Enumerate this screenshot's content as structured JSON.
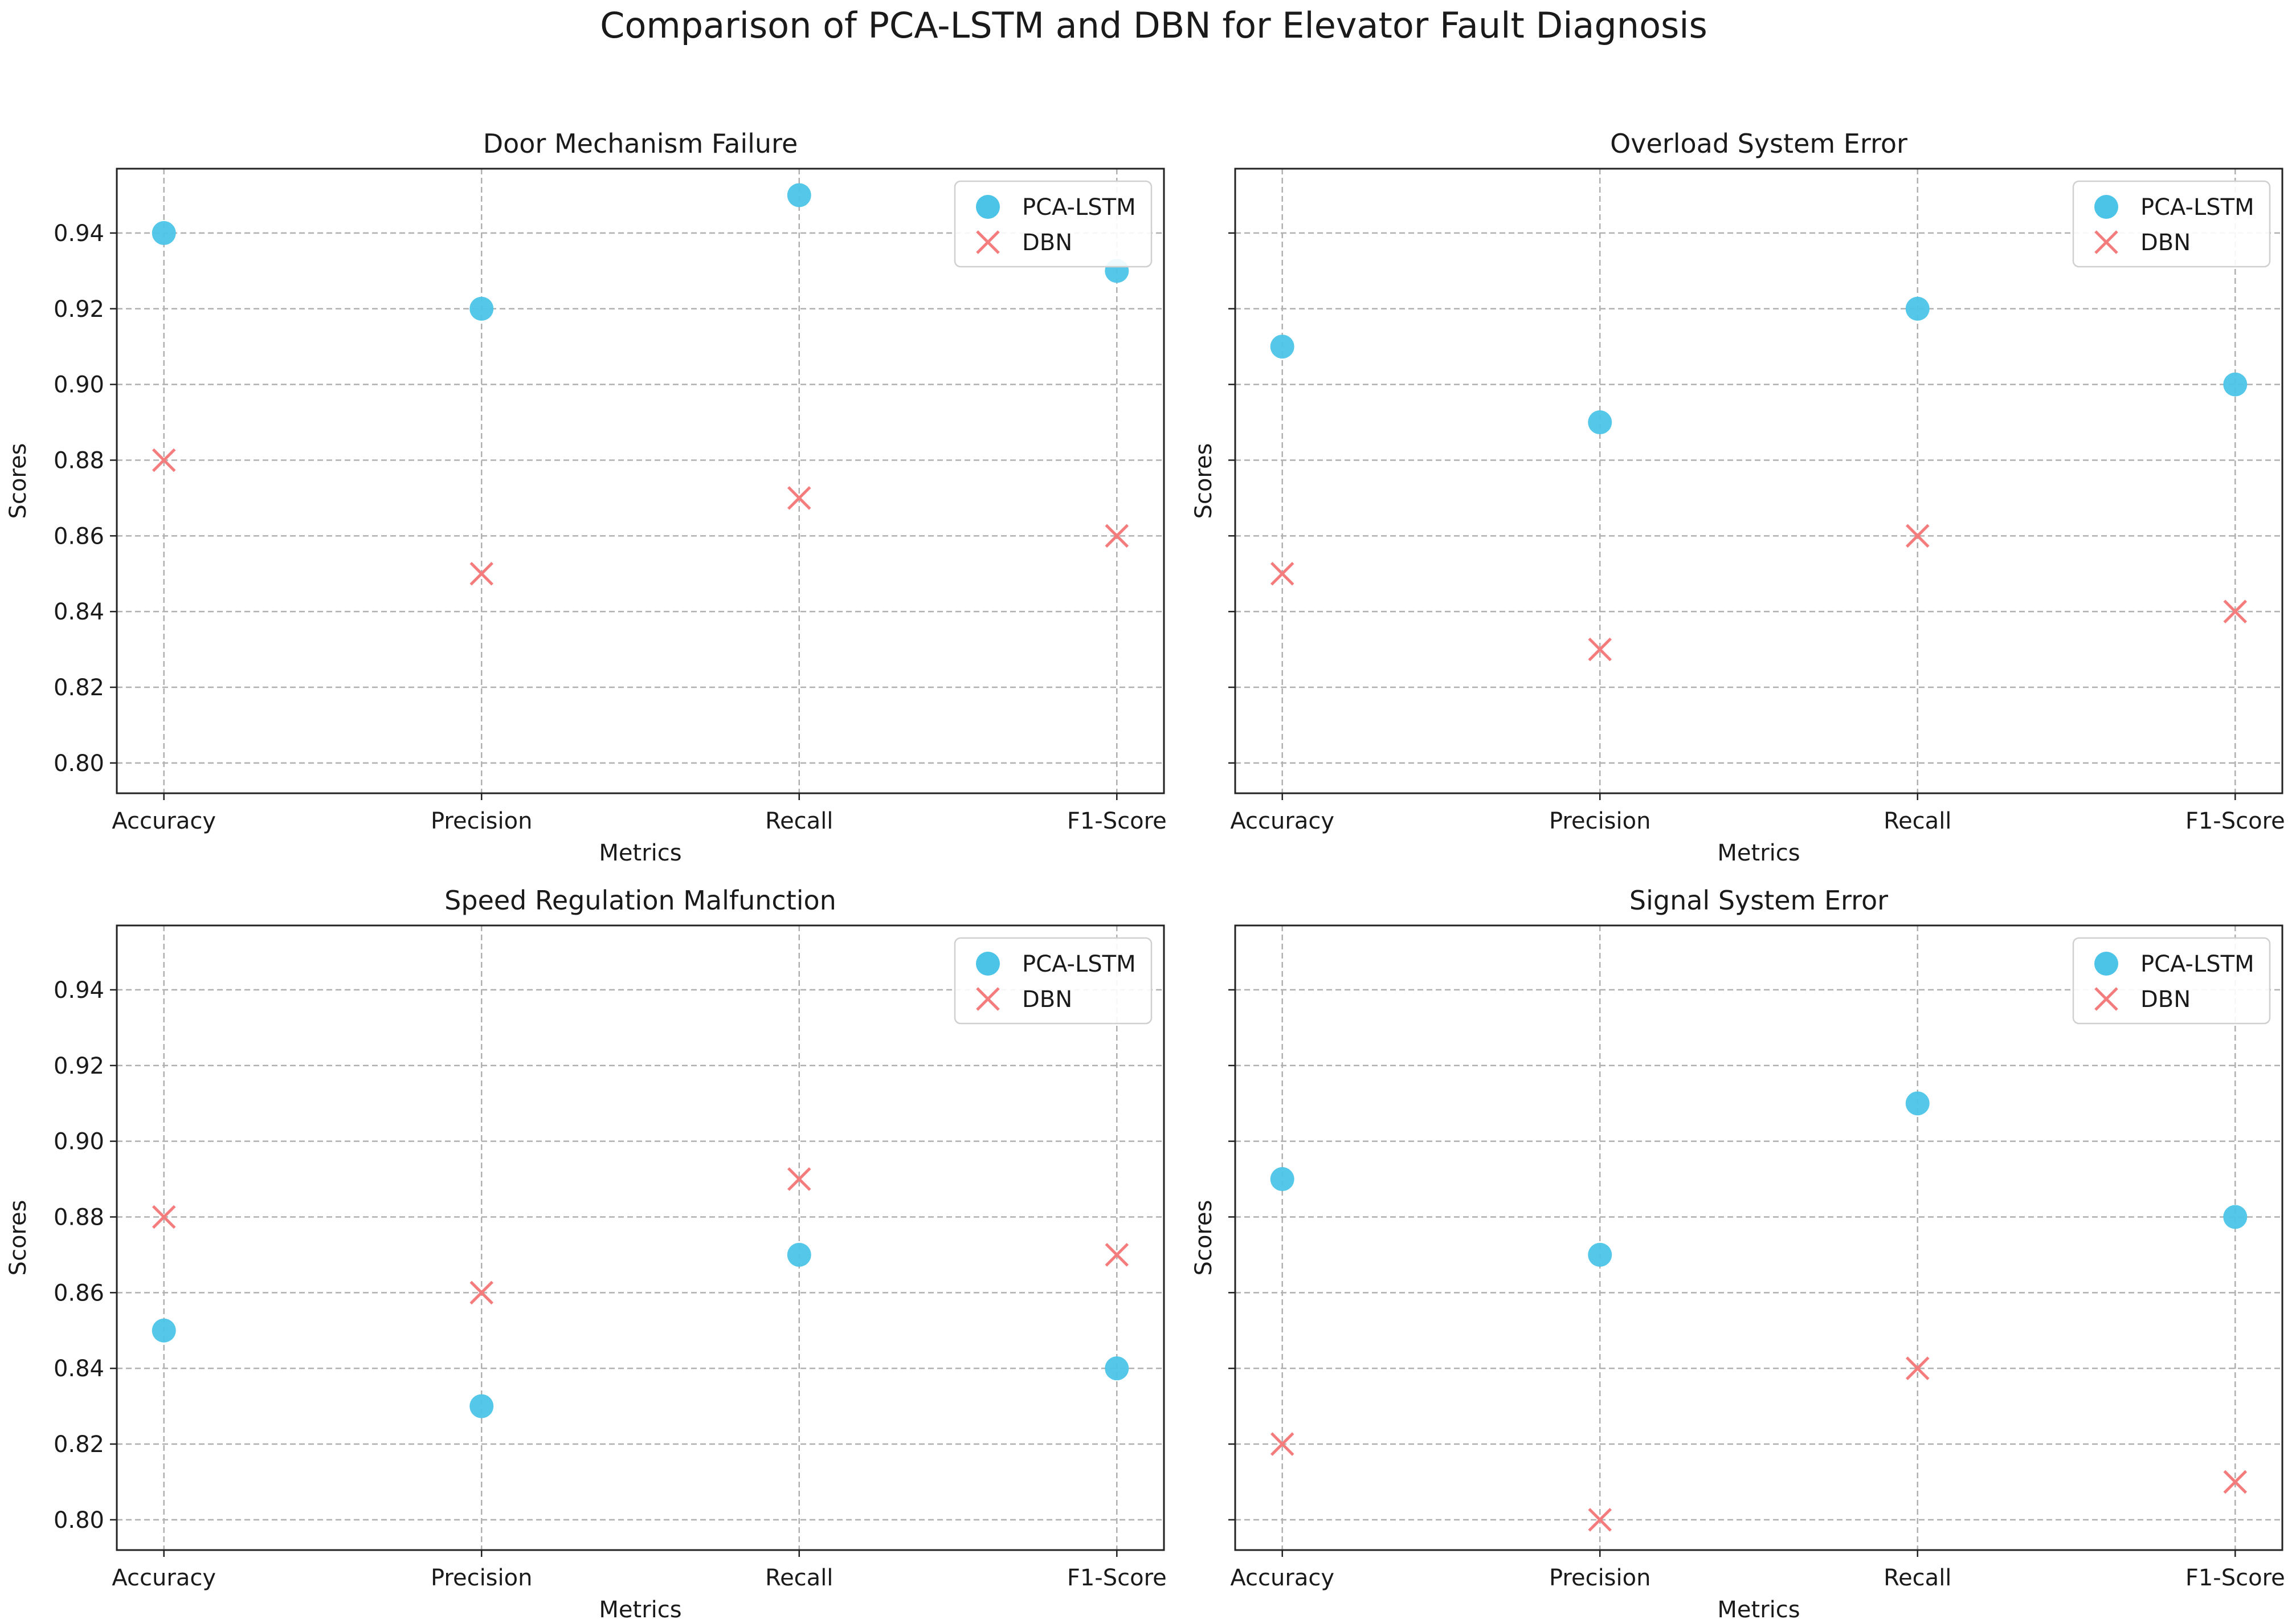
{
  "figure": {
    "title": "Comparison of PCA-LSTM and DBN for Elevator Fault Diagnosis"
  },
  "colors": {
    "pca_lstm": "#4cc4e8",
    "dbn": "#f47c7c",
    "grid": "#b0b0b0",
    "axes": "#222222"
  },
  "chart_data": [
    {
      "type": "scatter",
      "title": "Door Mechanism Failure",
      "xlabel": "Metrics",
      "ylabel": "Scores",
      "categories": [
        "Accuracy",
        "Precision",
        "Recall",
        "F1-Score"
      ],
      "ylim": [
        0.792,
        0.957
      ],
      "yticks": [
        "0.80",
        "0.82",
        "0.84",
        "0.86",
        "0.88",
        "0.90",
        "0.92",
        "0.94"
      ],
      "show_ytick_labels": true,
      "grid": true,
      "legend_position": "top-right",
      "series": [
        {
          "name": "PCA-LSTM",
          "marker": "circle",
          "values": [
            0.94,
            0.92,
            0.95,
            0.93
          ]
        },
        {
          "name": "DBN",
          "marker": "x",
          "values": [
            0.88,
            0.85,
            0.87,
            0.86
          ]
        }
      ]
    },
    {
      "type": "scatter",
      "title": "Overload System Error",
      "xlabel": "Metrics",
      "ylabel": "Scores",
      "categories": [
        "Accuracy",
        "Precision",
        "Recall",
        "F1-Score"
      ],
      "ylim": [
        0.792,
        0.957
      ],
      "yticks": [
        "0.80",
        "0.82",
        "0.84",
        "0.86",
        "0.88",
        "0.90",
        "0.92",
        "0.94"
      ],
      "show_ytick_labels": false,
      "grid": true,
      "legend_position": "top-right",
      "series": [
        {
          "name": "PCA-LSTM",
          "marker": "circle",
          "values": [
            0.91,
            0.89,
            0.92,
            0.9
          ]
        },
        {
          "name": "DBN",
          "marker": "x",
          "values": [
            0.85,
            0.83,
            0.86,
            0.84
          ]
        }
      ]
    },
    {
      "type": "scatter",
      "title": "Speed Regulation Malfunction",
      "xlabel": "Metrics",
      "ylabel": "Scores",
      "categories": [
        "Accuracy",
        "Precision",
        "Recall",
        "F1-Score"
      ],
      "ylim": [
        0.792,
        0.957
      ],
      "yticks": [
        "0.80",
        "0.82",
        "0.84",
        "0.86",
        "0.88",
        "0.90",
        "0.92",
        "0.94"
      ],
      "show_ytick_labels": true,
      "grid": true,
      "legend_position": "top-right",
      "series": [
        {
          "name": "PCA-LSTM",
          "marker": "circle",
          "values": [
            0.85,
            0.83,
            0.87,
            0.84
          ]
        },
        {
          "name": "DBN",
          "marker": "x",
          "values": [
            0.88,
            0.86,
            0.89,
            0.87
          ]
        }
      ]
    },
    {
      "type": "scatter",
      "title": "Signal System Error",
      "xlabel": "Metrics",
      "ylabel": "Scores",
      "categories": [
        "Accuracy",
        "Precision",
        "Recall",
        "F1-Score"
      ],
      "ylim": [
        0.792,
        0.957
      ],
      "yticks": [
        "0.80",
        "0.82",
        "0.84",
        "0.86",
        "0.88",
        "0.90",
        "0.92",
        "0.94"
      ],
      "show_ytick_labels": false,
      "grid": true,
      "legend_position": "top-right",
      "series": [
        {
          "name": "PCA-LSTM",
          "marker": "circle",
          "values": [
            0.89,
            0.87,
            0.91,
            0.88
          ]
        },
        {
          "name": "DBN",
          "marker": "x",
          "values": [
            0.82,
            0.8,
            0.84,
            0.81
          ]
        }
      ]
    }
  ]
}
